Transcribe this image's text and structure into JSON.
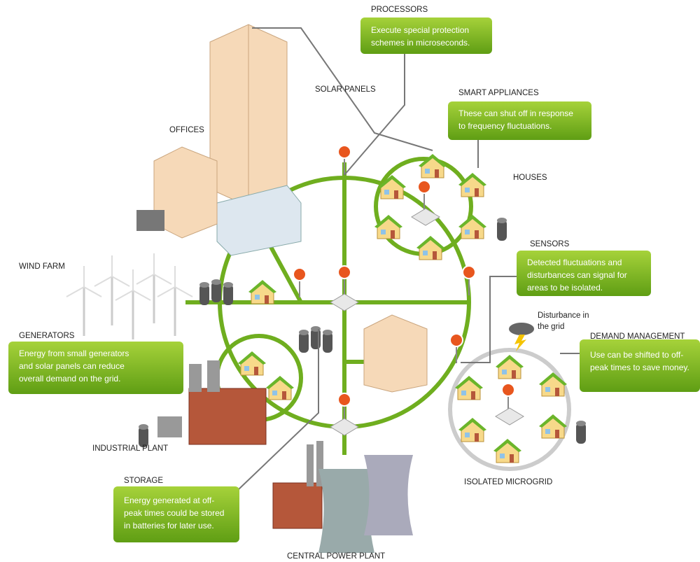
{
  "callouts": [
    {
      "title": "PROCESSORS",
      "lines": [
        "Execute special protection",
        "schemes in microseconds."
      ]
    },
    {
      "title": "SMART APPLIANCES",
      "lines": [
        "These can shut off in response",
        "to frequency fluctuations."
      ]
    },
    {
      "title": "SENSORS",
      "lines": [
        "Detected fluctuations and",
        "disturbances can signal for",
        "areas to be isolated."
      ]
    },
    {
      "title": "DEMAND MANAGEMENT",
      "lines": [
        "Use can be shifted to off-",
        "peak times to save money."
      ]
    },
    {
      "title": "GENERATORS",
      "lines": [
        "Energy from small generators",
        "and solar panels can reduce",
        "overall demand on the grid."
      ]
    },
    {
      "title": "STORAGE",
      "lines": [
        "Energy generated at off-",
        "peak times could be stored",
        "in batteries for later use."
      ]
    }
  ],
  "labels": {
    "solar_panels": "SOLAR PANELS",
    "offices": "OFFICES",
    "houses": "HOUSES",
    "wind_farm": "WIND FARM",
    "disturbance": [
      "Disturbance in",
      "the grid"
    ],
    "industrial_plant": "INDUSTRIAL PLANT",
    "isolated_microgrid": "ISOLATED MICROGRID",
    "central_power_plant": "CENTRAL POWER PLANT"
  }
}
